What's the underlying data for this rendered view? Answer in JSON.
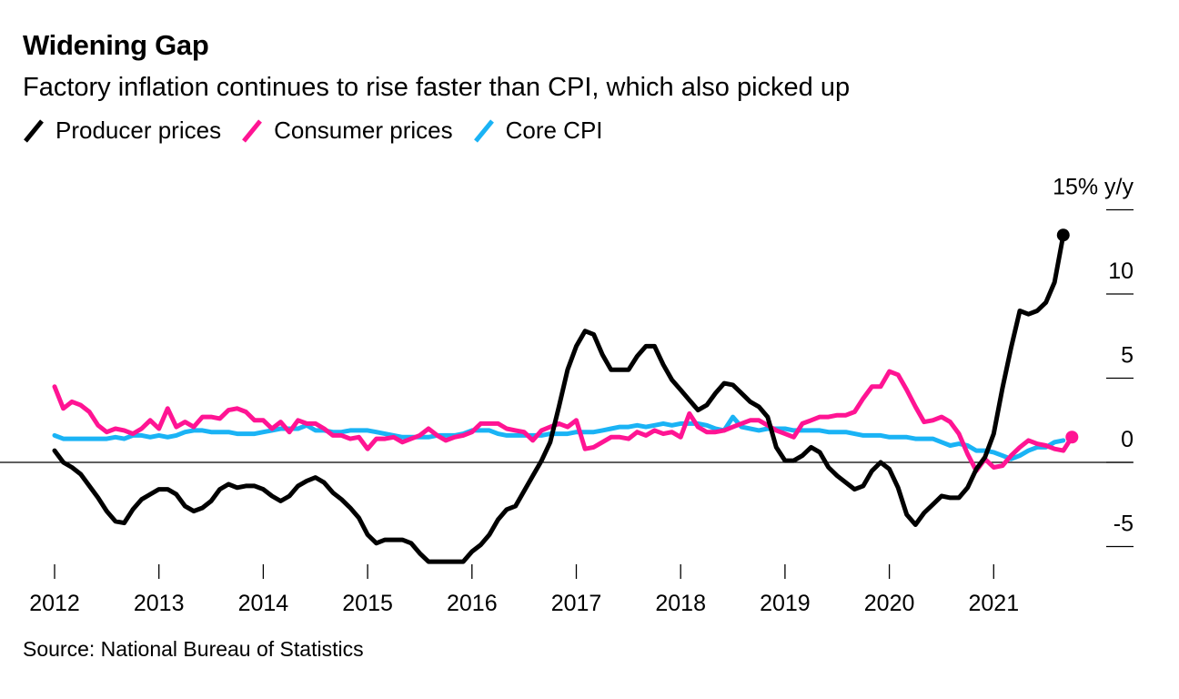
{
  "title": "Widening Gap",
  "subtitle": "Factory inflation continues to rise faster than CPI, which also picked up",
  "source": "Source: National Bureau of Statistics",
  "colors": {
    "producer": "#000000",
    "consumer": "#ff1493",
    "core": "#1ab3f5"
  },
  "chart_data": {
    "type": "line",
    "title": "Widening Gap",
    "subtitle": "Factory inflation continues to rise faster than CPI, which also picked up",
    "y_unit_label": "15% y/y",
    "ylim": [
      -6.5,
      15
    ],
    "y_ticks": [
      15,
      10,
      5,
      0,
      -5
    ],
    "y_tick_labels": [
      "15% y/y",
      "10",
      "5",
      "0",
      "-5"
    ],
    "x_ticks": [
      2012,
      2013,
      2014,
      2015,
      2016,
      2017,
      2018,
      2019,
      2020,
      2021
    ],
    "x_tick_labels": [
      "2012",
      "2013",
      "2014",
      "2015",
      "2016",
      "2017",
      "2018",
      "2019",
      "2020",
      "2021"
    ],
    "xlim": [
      2011.95,
      2022.3
    ],
    "grid": false,
    "zero_line": true,
    "legend_position": "top-left",
    "series": [
      {
        "name": "Producer prices",
        "color": "#000000",
        "end_marker": true,
        "start": "2012-01",
        "values": [
          0.7,
          0.0,
          -0.3,
          -0.7,
          -1.4,
          -2.1,
          -2.9,
          -3.5,
          -3.6,
          -2.8,
          -2.2,
          -1.9,
          -1.6,
          -1.6,
          -1.9,
          -2.6,
          -2.9,
          -2.7,
          -2.3,
          -1.6,
          -1.3,
          -1.5,
          -1.4,
          -1.4,
          -1.6,
          -2.0,
          -2.3,
          -2.0,
          -1.4,
          -1.1,
          -0.9,
          -1.2,
          -1.8,
          -2.2,
          -2.7,
          -3.3,
          -4.3,
          -4.8,
          -4.6,
          -4.6,
          -4.6,
          -4.8,
          -5.4,
          -5.9,
          -5.9,
          -5.9,
          -5.9,
          -5.9,
          -5.3,
          -4.9,
          -4.3,
          -3.4,
          -2.8,
          -2.6,
          -1.7,
          -0.8,
          0.1,
          1.2,
          3.3,
          5.5,
          6.9,
          7.8,
          7.6,
          6.4,
          5.5,
          5.5,
          5.5,
          6.3,
          6.9,
          6.9,
          5.8,
          4.9,
          4.3,
          3.7,
          3.1,
          3.4,
          4.1,
          4.7,
          4.6,
          4.1,
          3.6,
          3.3,
          2.7,
          0.9,
          0.1,
          0.1,
          0.4,
          0.9,
          0.6,
          -0.3,
          -0.8,
          -1.2,
          -1.6,
          -1.4,
          -0.5,
          0.0,
          -0.4,
          -1.5,
          -3.1,
          -3.7,
          -3.0,
          -2.5,
          -2.0,
          -2.1,
          -2.1,
          -1.5,
          -0.4,
          0.3,
          1.7,
          4.4,
          6.8,
          9.0,
          8.8,
          9.0,
          9.5,
          10.7,
          13.5
        ]
      },
      {
        "name": "Consumer prices",
        "color": "#ff1493",
        "end_marker": true,
        "start": "2012-01",
        "values": [
          4.5,
          3.2,
          3.6,
          3.4,
          3.0,
          2.2,
          1.8,
          2.0,
          1.9,
          1.7,
          2.0,
          2.5,
          2.0,
          3.2,
          2.1,
          2.4,
          2.1,
          2.7,
          2.7,
          2.6,
          3.1,
          3.2,
          3.0,
          2.5,
          2.5,
          2.0,
          2.4,
          1.8,
          2.5,
          2.3,
          2.3,
          2.0,
          1.6,
          1.6,
          1.4,
          1.5,
          0.8,
          1.4,
          1.4,
          1.5,
          1.2,
          1.4,
          1.6,
          2.0,
          1.6,
          1.3,
          1.5,
          1.6,
          1.8,
          2.3,
          2.3,
          2.3,
          2.0,
          1.9,
          1.8,
          1.3,
          1.9,
          2.1,
          2.3,
          2.1,
          2.5,
          0.8,
          0.9,
          1.2,
          1.5,
          1.5,
          1.4,
          1.8,
          1.6,
          1.9,
          1.7,
          1.8,
          1.5,
          2.9,
          2.1,
          1.8,
          1.8,
          1.9,
          2.1,
          2.3,
          2.5,
          2.5,
          2.2,
          1.9,
          1.7,
          1.5,
          2.3,
          2.5,
          2.7,
          2.7,
          2.8,
          2.8,
          3.0,
          3.8,
          4.5,
          4.5,
          5.4,
          5.2,
          4.3,
          3.3,
          2.4,
          2.5,
          2.7,
          2.4,
          1.7,
          0.5,
          -0.5,
          0.2,
          -0.3,
          -0.2,
          0.4,
          0.9,
          1.3,
          1.1,
          1.0,
          0.8,
          0.7,
          1.5
        ]
      },
      {
        "name": "Core CPI",
        "color": "#1ab3f5",
        "end_marker": false,
        "start": "2012-01",
        "values": [
          1.6,
          1.4,
          1.4,
          1.4,
          1.4,
          1.4,
          1.4,
          1.5,
          1.4,
          1.6,
          1.6,
          1.5,
          1.6,
          1.5,
          1.6,
          1.8,
          1.9,
          1.9,
          1.8,
          1.8,
          1.8,
          1.7,
          1.7,
          1.7,
          1.8,
          1.9,
          2.0,
          2.0,
          2.0,
          2.2,
          1.9,
          1.9,
          1.8,
          1.8,
          1.9,
          1.9,
          1.9,
          1.8,
          1.7,
          1.6,
          1.5,
          1.5,
          1.5,
          1.5,
          1.6,
          1.6,
          1.6,
          1.7,
          1.9,
          1.9,
          1.9,
          1.7,
          1.6,
          1.6,
          1.6,
          1.6,
          1.6,
          1.7,
          1.7,
          1.7,
          1.8,
          1.8,
          1.8,
          1.9,
          2.0,
          2.1,
          2.1,
          2.2,
          2.1,
          2.2,
          2.3,
          2.2,
          2.3,
          2.3,
          2.3,
          2.2,
          2.0,
          1.9,
          2.7,
          2.1,
          2.0,
          1.9,
          2.0,
          2.0,
          2.0,
          1.9,
          1.9,
          1.9,
          1.9,
          1.8,
          1.8,
          1.8,
          1.7,
          1.6,
          1.6,
          1.6,
          1.5,
          1.5,
          1.5,
          1.4,
          1.4,
          1.4,
          1.2,
          1.0,
          1.1,
          1.0,
          0.7,
          0.7,
          0.6,
          0.4,
          0.2,
          0.4,
          0.7,
          0.9,
          0.9,
          1.2,
          1.3
        ]
      }
    ]
  }
}
